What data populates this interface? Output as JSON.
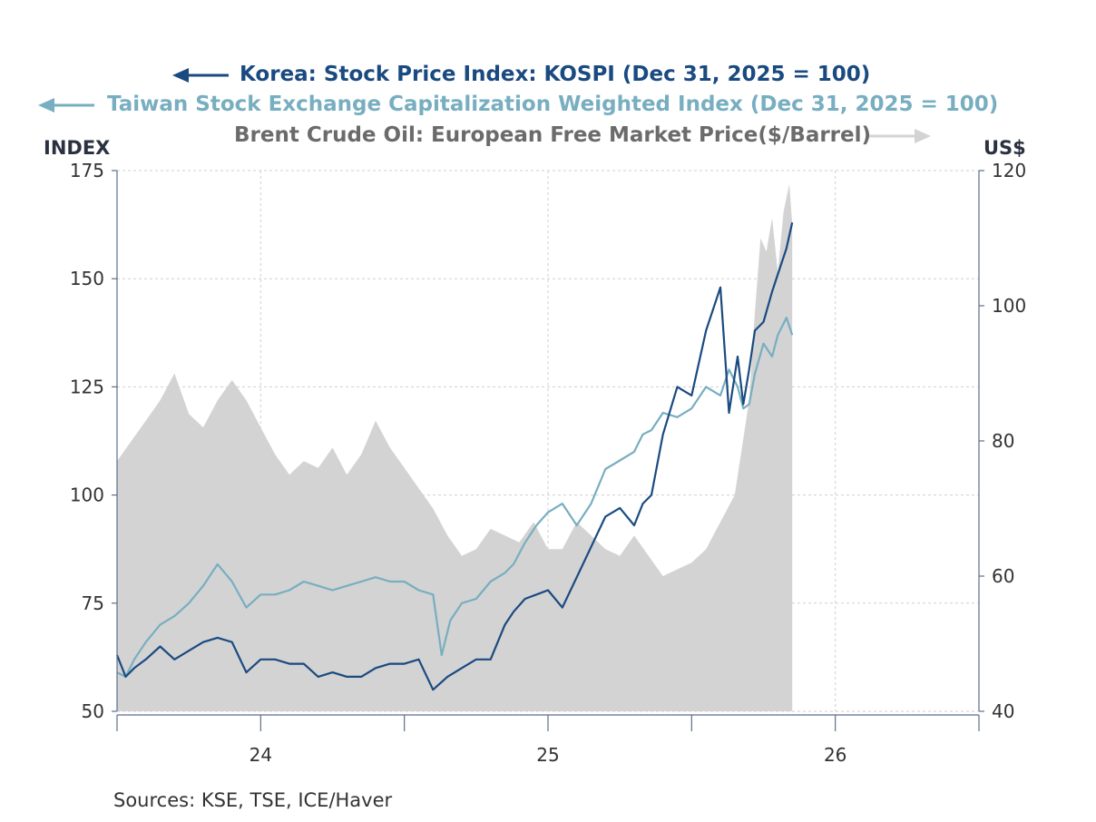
{
  "legend": [
    {
      "label": "Korea: Stock Price Index: KOSPI (Dec 31, 2025 = 100)",
      "color": "#1a4a80",
      "arrow": "left"
    },
    {
      "label": "Taiwan Stock Exchange Capitalization Weighted Index (Dec 31, 2025 = 100)",
      "color": "#77aec0",
      "arrow": "left"
    },
    {
      "label": "Brent Crude Oil: European Free Market Price($/Barrel)",
      "color": "#6b6b6b",
      "arrow": "right"
    }
  ],
  "left_axis_title": "INDEX",
  "right_axis_title": "US$",
  "source": "Sources:  KSE, TSE, ICE/Haver",
  "chart_data": {
    "type": "line",
    "x_tick_labels": [
      "24",
      "25",
      "26"
    ],
    "left_axis": {
      "ylim": [
        50,
        175
      ],
      "ticks": [
        50,
        75,
        100,
        125,
        150,
        175
      ]
    },
    "right_axis": {
      "ylim": [
        40,
        120
      ],
      "ticks": [
        40,
        60,
        80,
        100,
        120
      ]
    },
    "grid": true,
    "series": [
      {
        "name": "Korea: Stock Price Index: KOSPI (Dec 31, 2025 = 100)",
        "axis": "left",
        "color": "#1a4a80",
        "x": [
          2023.5,
          2023.53,
          2023.56,
          2023.6,
          2023.65,
          2023.7,
          2023.75,
          2023.8,
          2023.85,
          2023.9,
          2023.95,
          2024.0,
          2024.05,
          2024.1,
          2024.15,
          2024.2,
          2024.25,
          2024.3,
          2024.35,
          2024.4,
          2024.45,
          2024.5,
          2024.55,
          2024.6,
          2024.65,
          2024.7,
          2024.75,
          2024.8,
          2024.85,
          2024.88,
          2024.92,
          2024.96,
          2025.0,
          2025.05,
          2025.1,
          2025.15,
          2025.2,
          2025.25,
          2025.3,
          2025.33,
          2025.36,
          2025.4,
          2025.45,
          2025.5,
          2025.55,
          2025.6,
          2025.63,
          2025.66,
          2025.68,
          2025.7,
          2025.72,
          2025.75,
          2025.78,
          2025.8,
          2025.83,
          2025.85
        ],
        "values": [
          63,
          58,
          60,
          62,
          65,
          62,
          64,
          66,
          67,
          66,
          59,
          62,
          62,
          61,
          61,
          58,
          59,
          58,
          58,
          60,
          61,
          61,
          62,
          55,
          58,
          60,
          62,
          62,
          70,
          73,
          76,
          77,
          78,
          74,
          81,
          88,
          95,
          97,
          93,
          98,
          100,
          114,
          125,
          123,
          138,
          148,
          119,
          132,
          121,
          129,
          138,
          140,
          147,
          151,
          157,
          163
        ]
      },
      {
        "name": "Taiwan Stock Exchange Capitalization Weighted Index (Dec 31, 2025 = 100)",
        "axis": "left",
        "color": "#77aec0",
        "x": [
          2023.5,
          2023.53,
          2023.56,
          2023.6,
          2023.65,
          2023.7,
          2023.75,
          2023.8,
          2023.85,
          2023.9,
          2023.95,
          2024.0,
          2024.05,
          2024.1,
          2024.15,
          2024.2,
          2024.25,
          2024.3,
          2024.35,
          2024.4,
          2024.45,
          2024.5,
          2024.55,
          2024.6,
          2024.63,
          2024.66,
          2024.7,
          2024.75,
          2024.8,
          2024.85,
          2024.88,
          2024.92,
          2024.96,
          2025.0,
          2025.05,
          2025.1,
          2025.15,
          2025.2,
          2025.25,
          2025.3,
          2025.33,
          2025.36,
          2025.4,
          2025.45,
          2025.5,
          2025.55,
          2025.6,
          2025.63,
          2025.66,
          2025.68,
          2025.7,
          2025.72,
          2025.75,
          2025.78,
          2025.8,
          2025.83,
          2025.85
        ],
        "values": [
          59,
          58,
          62,
          66,
          70,
          72,
          75,
          79,
          84,
          80,
          74,
          77,
          77,
          78,
          80,
          79,
          78,
          79,
          80,
          81,
          80,
          80,
          78,
          77,
          63,
          71,
          75,
          76,
          80,
          82,
          84,
          89,
          93,
          96,
          98,
          93,
          98,
          106,
          108,
          110,
          114,
          115,
          119,
          118,
          120,
          125,
          123,
          129,
          125,
          120,
          121,
          128,
          135,
          132,
          137,
          141,
          137
        ]
      },
      {
        "name": "Brent Crude Oil: European Free Market Price($/Barrel)",
        "axis": "right",
        "type": "area",
        "color": "#d3d3d3",
        "x": [
          2023.5,
          2023.55,
          2023.6,
          2023.65,
          2023.7,
          2023.75,
          2023.8,
          2023.85,
          2023.9,
          2023.95,
          2024.0,
          2024.05,
          2024.1,
          2024.15,
          2024.2,
          2024.25,
          2024.3,
          2024.35,
          2024.4,
          2024.45,
          2024.5,
          2024.55,
          2024.6,
          2024.65,
          2024.7,
          2024.75,
          2024.8,
          2024.85,
          2024.9,
          2024.95,
          2025.0,
          2025.05,
          2025.1,
          2025.15,
          2025.2,
          2025.25,
          2025.3,
          2025.35,
          2025.4,
          2025.45,
          2025.5,
          2025.55,
          2025.6,
          2025.65,
          2025.7,
          2025.72,
          2025.74,
          2025.76,
          2025.78,
          2025.8,
          2025.82,
          2025.84,
          2025.85
        ],
        "values": [
          77,
          80,
          83,
          86,
          90,
          84,
          82,
          86,
          89,
          86,
          82,
          78,
          75,
          77,
          76,
          79,
          75,
          78,
          83,
          79,
          76,
          73,
          70,
          66,
          63,
          64,
          67,
          66,
          65,
          68,
          64,
          64,
          68,
          66,
          64,
          63,
          66,
          63,
          60,
          61,
          62,
          64,
          68,
          72,
          86,
          99,
          110,
          108,
          113,
          105,
          114,
          118,
          112
        ]
      }
    ]
  }
}
